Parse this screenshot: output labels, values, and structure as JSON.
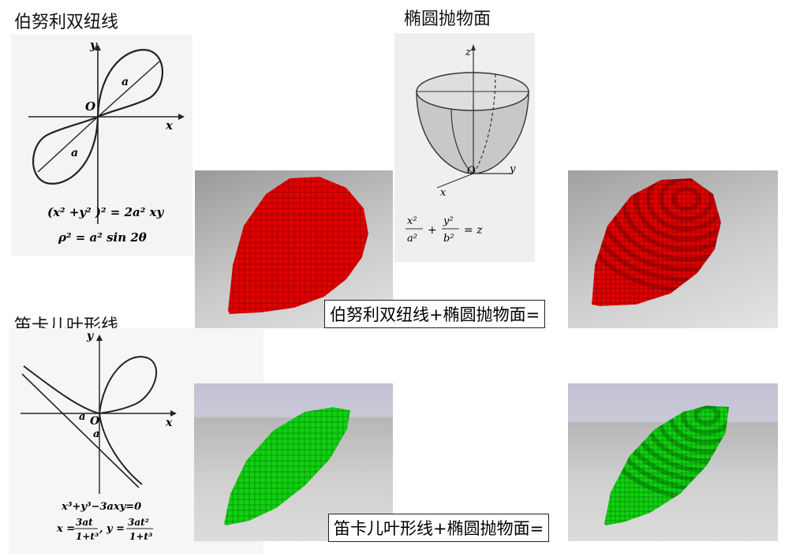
{
  "lemniscate": {
    "title": "伯努利双纽线",
    "axis_y": "y",
    "axis_x": "x",
    "origin": "O",
    "param_upper": "a",
    "param_lower": "a",
    "equation_cartesian": "(x² +y² )² = 2a² xy",
    "equation_polar": "ρ² = a² sin 2θ"
  },
  "paraboloid": {
    "title": "椭圆抛物面",
    "axis_z": "z",
    "axis_y": "y",
    "axis_x": "x",
    "origin": "O",
    "eq_x_num": "x²",
    "eq_x_den": "a²",
    "eq_plus": "+",
    "eq_y_num": "y²",
    "eq_y_den": "b²",
    "eq_rhs": "= z"
  },
  "folium": {
    "title": "笛卡儿叶形线",
    "axis_y": "y",
    "axis_x": "x",
    "origin": "O",
    "param_h": "a",
    "param_v": "a",
    "equation_implicit": "x³+y³−3axy=0",
    "eq_x_lhs": "x =",
    "eq_x_num": "3at",
    "eq_x_den": "1+t³",
    "eq_sep": ", y =",
    "eq_y_num": "3at²",
    "eq_y_den": "1+t³"
  },
  "captions": {
    "red": "伯努利双纽线+椭圆抛物面=",
    "green": "笛卡儿叶形线+椭圆抛物面="
  },
  "colors": {
    "red_voxel": "#e00000",
    "green_voxel": "#10d010",
    "red_voxel_shade": "#8a0000",
    "green_voxel_shade": "#067a06"
  }
}
